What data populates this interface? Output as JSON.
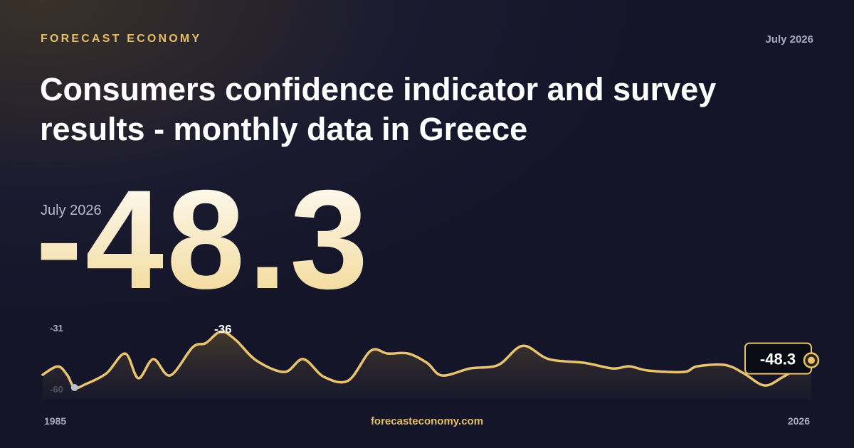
{
  "brand": "FORECAST ECONOMY",
  "date": "July 2026",
  "title_lines": [
    "Consumers confidence indicator and survey",
    "results - monthly data in Greece"
  ],
  "latest_label": "July 2026",
  "footer": "forecasteconomy.com",
  "chart_data": {
    "type": "line",
    "color": "#e8c46f",
    "x": [
      1985.0,
      1985.8,
      1986.3,
      1986.7,
      1987.3,
      1988.4,
      1989.4,
      1990.1,
      1990.9,
      1991.8,
      1993.0,
      1993.7,
      1994.5,
      1995.3,
      1996.4,
      1997.9,
      1998.9,
      2000.0,
      2001.3,
      2002.5,
      2003.4,
      2004.5,
      2005.5,
      2006.3,
      2007.8,
      2009.3,
      2010.6,
      2012.0,
      2013.9,
      2015.4,
      2016.3,
      2017.3,
      2019.2,
      2019.9,
      2021.4,
      2022.4,
      2023.5,
      2024.5,
      2026.0
    ],
    "values": [
      -54.5,
      -50.9,
      -54.5,
      -60,
      -58.5,
      -53.9,
      -45.4,
      -56,
      -47.8,
      -54.8,
      -42.7,
      -40.9,
      -36,
      -39.6,
      -48.4,
      -53.3,
      -47.8,
      -55.4,
      -57,
      -44.2,
      -45.4,
      -45.4,
      -49.4,
      -54.8,
      -51.8,
      -50.3,
      -42.1,
      -47.8,
      -49.4,
      -51.8,
      -50.9,
      -52.7,
      -53.3,
      -50.9,
      -50.3,
      -53.9,
      -59.1,
      -55.4,
      -48.3
    ],
    "xlim": [
      1985,
      2026
    ],
    "xticks": [
      1985,
      2026
    ],
    "ylim": [
      -60,
      -31
    ],
    "yticks": [
      -60,
      -31
    ]
  }
}
